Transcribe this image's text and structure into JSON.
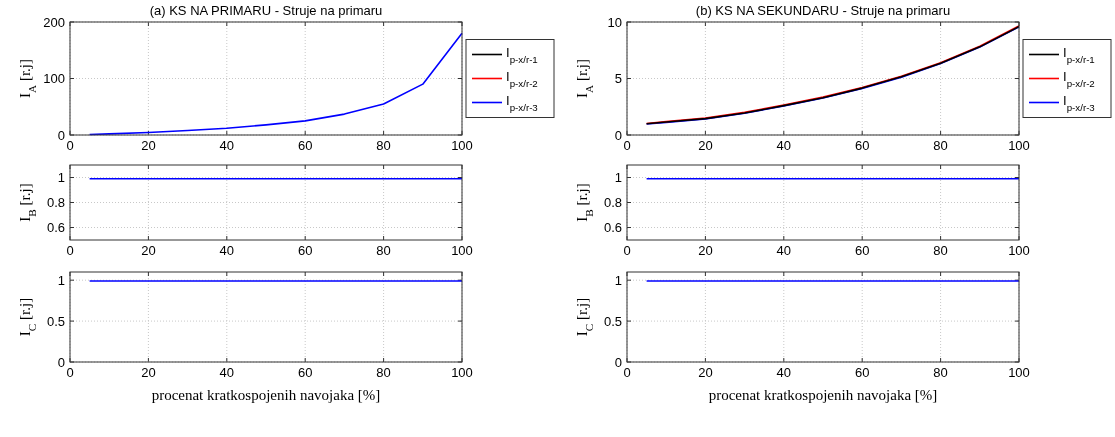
{
  "chart_data": [
    {
      "type": "line",
      "title": "(a) KS NA PRIMARU - Struje na primaru",
      "ylabel": "I$_{A}$ [r.j]",
      "x": [
        5,
        10,
        20,
        30,
        40,
        50,
        60,
        70,
        80,
        90,
        100
      ],
      "xlim": [
        0,
        100
      ],
      "xticks": [
        0,
        20,
        40,
        60,
        80,
        100
      ],
      "ylim": [
        0,
        200
      ],
      "yticks": [
        0,
        100,
        200
      ],
      "grid": true,
      "legend": "right",
      "line_style": "solid",
      "series": [
        {
          "name": "I$_{p-x/r-1}$",
          "color": "#000000",
          "values": [
            null,
            null,
            null,
            null,
            null,
            null,
            null,
            null,
            null,
            null,
            null
          ]
        },
        {
          "name": "I$_{p-x/r-2}$",
          "color": "#ff0000",
          "values": [
            null,
            null,
            null,
            null,
            null,
            null,
            null,
            null,
            null,
            null,
            null
          ]
        },
        {
          "name": "I$_{p-x/r-3}$",
          "color": "#0000ff",
          "values": [
            1,
            2,
            4.5,
            8,
            12,
            18,
            25,
            37,
            55,
            90,
            180
          ]
        }
      ]
    },
    {
      "type": "line",
      "ylabel": "I$_{B}$ [r.j]",
      "x": [
        5,
        10,
        20,
        30,
        40,
        50,
        60,
        70,
        80,
        90,
        100
      ],
      "xlim": [
        0,
        100
      ],
      "xticks": [
        0,
        20,
        40,
        60,
        80,
        100
      ],
      "ylim": [
        0.5,
        1.1
      ],
      "yticks": [
        0.6,
        0.8,
        1
      ],
      "grid": true,
      "line_style": "solid",
      "series": [
        {
          "color": "#0000ff",
          "values": [
            0.99,
            0.99,
            0.99,
            0.99,
            0.99,
            0.99,
            0.99,
            0.99,
            0.99,
            0.99,
            0.99
          ]
        }
      ]
    },
    {
      "type": "line",
      "xlabel": "procenat kratkospojenih navojaka [%]",
      "ylabel": "I$_{C}$ [r.j]",
      "x": [
        5,
        10,
        20,
        30,
        40,
        50,
        60,
        70,
        80,
        90,
        100
      ],
      "xlim": [
        0,
        100
      ],
      "xticks": [
        0,
        20,
        40,
        60,
        80,
        100
      ],
      "ylim": [
        0,
        1.1
      ],
      "yticks": [
        0,
        0.5,
        1
      ],
      "grid": true,
      "line_style": "solid",
      "series": [
        {
          "color": "#0000ff",
          "values": [
            0.99,
            0.99,
            0.99,
            0.99,
            0.99,
            0.99,
            0.99,
            0.99,
            0.99,
            0.99,
            0.99
          ]
        }
      ]
    },
    {
      "type": "line",
      "title": "(b) KS NA SEKUNDARU - Struje na primaru",
      "ylabel": "I$_{A}$ [r.j]",
      "x": [
        5,
        10,
        20,
        30,
        40,
        50,
        60,
        70,
        80,
        90,
        100
      ],
      "xlim": [
        0,
        100
      ],
      "xticks": [
        0,
        20,
        40,
        60,
        80,
        100
      ],
      "ylim": [
        0,
        10
      ],
      "yticks": [
        0,
        5,
        10
      ],
      "grid": true,
      "legend": "right",
      "line_style": "solid",
      "series": [
        {
          "name": "I$_{p-x/r-1}$",
          "color": "#000000",
          "values": [
            1,
            1.15,
            1.45,
            1.95,
            2.6,
            3.3,
            4.15,
            5.15,
            6.35,
            7.8,
            9.6
          ]
        },
        {
          "name": "I$_{p-x/r-2}$",
          "color": "#ff0000",
          "values": [
            1.02,
            1.18,
            1.5,
            2,
            2.65,
            3.35,
            4.2,
            5.2,
            6.4,
            7.85,
            9.65
          ]
        },
        {
          "name": "I$_{p-x/r-3}$",
          "color": "#0000ff",
          "values": [
            0.98,
            1.12,
            1.42,
            1.92,
            2.57,
            3.27,
            4.12,
            5.12,
            6.33,
            7.78,
            9.58
          ]
        }
      ]
    },
    {
      "type": "line",
      "ylabel": "I$_{B}$ [r.j]",
      "x": [
        5,
        10,
        20,
        30,
        40,
        50,
        60,
        70,
        80,
        90,
        100
      ],
      "xlim": [
        0,
        100
      ],
      "xticks": [
        0,
        20,
        40,
        60,
        80,
        100
      ],
      "ylim": [
        0.5,
        1.1
      ],
      "yticks": [
        0.6,
        0.8,
        1
      ],
      "grid": true,
      "line_style": "solid",
      "series": [
        {
          "color": "#0000ff",
          "values": [
            0.99,
            0.99,
            0.99,
            0.99,
            0.99,
            0.99,
            0.99,
            0.99,
            0.99,
            0.99,
            0.99
          ]
        }
      ]
    },
    {
      "type": "line",
      "xlabel": "procenat kratkospojenih navojaka [%]",
      "ylabel": "I$_{C}$ [r.j]",
      "x": [
        5,
        10,
        20,
        30,
        40,
        50,
        60,
        70,
        80,
        90,
        100
      ],
      "xlim": [
        0,
        100
      ],
      "xticks": [
        0,
        20,
        40,
        60,
        80,
        100
      ],
      "ylim": [
        0,
        1.1
      ],
      "yticks": [
        0,
        0.5,
        1
      ],
      "grid": true,
      "line_style": "solid",
      "series": [
        {
          "color": "#0000ff",
          "values": [
            0.99,
            0.99,
            0.99,
            0.99,
            0.99,
            0.99,
            0.99,
            0.99,
            0.99,
            0.99,
            0.99
          ]
        }
      ]
    }
  ]
}
